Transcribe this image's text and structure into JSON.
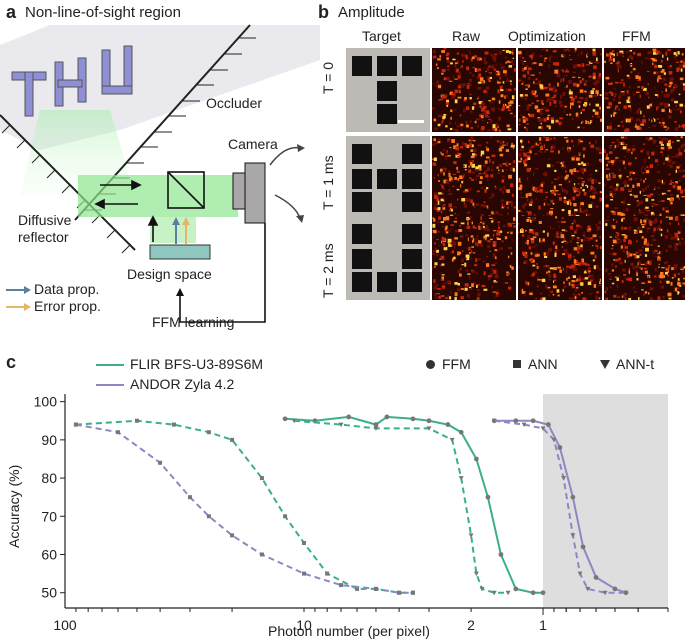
{
  "panel_a": {
    "letter": "a",
    "title": "Non-line-of-sight region",
    "occluder_label": "Occluder",
    "camera_label": "Camera",
    "reflector_label_1": "Diffusive",
    "reflector_label_2": "reflector",
    "design_space_label": "Design space",
    "data_prop_label": "Data prop.",
    "error_prop_label": "Error prop.",
    "ffm_learning_label": "FFM learning",
    "colors": {
      "data_prop": "#5a7fa0",
      "error_prop": "#e8b46a",
      "beam": "#7fe07f",
      "letters": "#8f8fd6",
      "design_space": "#8fc7bf"
    }
  },
  "panel_b": {
    "letter": "b",
    "title": "Amplitude",
    "columns": [
      "Target",
      "Raw",
      "Optimization",
      "FFM"
    ],
    "rows": [
      "T = 0",
      "T = 1 ms",
      "T = 2 ms"
    ]
  },
  "panel_c": {
    "letter": "c",
    "legend_cameras": [
      "FLIR BFS-U3-89S6M",
      "ANDOR Zyla 4.2"
    ],
    "legend_methods": [
      "FFM",
      "ANN",
      "ANN-t"
    ],
    "colors": {
      "flir": "#3aaf8a",
      "andor": "#8c88c4",
      "shade": "#dedede"
    }
  },
  "chart_data": {
    "type": "line",
    "xlabel": "Photon number (per pixel)",
    "ylabel": "Accuracy (%)",
    "x_scale": "log",
    "x_reversed": true,
    "xlim": [
      100,
      0.3
    ],
    "ylim": [
      46,
      102
    ],
    "x_ticks": [
      100,
      10,
      2,
      1
    ],
    "y_ticks": [
      50,
      60,
      70,
      80,
      90,
      100
    ],
    "shaded_region_x": [
      1,
      0.3
    ],
    "series": [
      {
        "name": "FLIR BFS-U3-89S6M",
        "method": "FFM",
        "style": "solid",
        "color": "#3aaf8a",
        "points": [
          [
            12,
            95.5
          ],
          [
            9,
            95
          ],
          [
            6.5,
            96
          ],
          [
            5,
            94
          ],
          [
            4.5,
            96
          ],
          [
            3.5,
            95.5
          ],
          [
            3,
            95
          ],
          [
            2.5,
            94
          ],
          [
            2.2,
            92
          ],
          [
            1.9,
            85
          ],
          [
            1.7,
            75
          ],
          [
            1.5,
            60
          ],
          [
            1.3,
            51
          ],
          [
            1.1,
            50
          ],
          [
            1,
            50
          ]
        ]
      },
      {
        "name": "FLIR BFS-U3-89S6M",
        "method": "ANN",
        "style": "dashed",
        "color": "#3aaf8a",
        "points": [
          [
            90,
            94
          ],
          [
            50,
            95
          ],
          [
            35,
            94
          ],
          [
            25,
            92
          ],
          [
            20,
            90
          ],
          [
            15,
            80
          ],
          [
            12,
            70
          ],
          [
            10,
            63
          ],
          [
            8,
            55
          ],
          [
            6,
            51
          ],
          [
            5,
            51
          ],
          [
            4,
            50
          ],
          [
            3.5,
            50
          ]
        ]
      },
      {
        "name": "FLIR BFS-U3-89S6M",
        "method": "ANN-t",
        "style": "dashed",
        "color": "#3aaf8a",
        "points": [
          [
            11,
            95
          ],
          [
            7,
            94
          ],
          [
            5,
            93
          ],
          [
            3,
            93
          ],
          [
            2.4,
            90
          ],
          [
            2.2,
            80
          ],
          [
            2,
            65
          ],
          [
            1.9,
            55
          ],
          [
            1.8,
            51
          ],
          [
            1.6,
            50
          ],
          [
            1.4,
            50
          ]
        ]
      },
      {
        "name": "ANDOR Zyla 4.2",
        "method": "FFM",
        "style": "solid",
        "color": "#8c88c4",
        "points": [
          [
            1.6,
            95
          ],
          [
            1.3,
            95
          ],
          [
            1.1,
            95
          ],
          [
            0.95,
            94
          ],
          [
            0.85,
            88
          ],
          [
            0.75,
            75
          ],
          [
            0.68,
            62
          ],
          [
            0.6,
            54
          ],
          [
            0.5,
            51
          ],
          [
            0.45,
            50
          ]
        ]
      },
      {
        "name": "ANDOR Zyla 4.2",
        "method": "ANN",
        "style": "dashed",
        "color": "#8c88c4",
        "points": [
          [
            90,
            94
          ],
          [
            60,
            92
          ],
          [
            40,
            84
          ],
          [
            30,
            75
          ],
          [
            25,
            70
          ],
          [
            20,
            65
          ],
          [
            15,
            60
          ],
          [
            10,
            55
          ],
          [
            7,
            52
          ],
          [
            5,
            51
          ],
          [
            4,
            50
          ],
          [
            3.5,
            50
          ]
        ]
      },
      {
        "name": "ANDOR Zyla 4.2",
        "method": "ANN-t",
        "style": "dashed",
        "color": "#8c88c4",
        "points": [
          [
            1.6,
            95
          ],
          [
            1.2,
            94
          ],
          [
            1,
            93
          ],
          [
            0.9,
            90
          ],
          [
            0.82,
            80
          ],
          [
            0.75,
            65
          ],
          [
            0.7,
            55
          ],
          [
            0.65,
            51
          ],
          [
            0.55,
            50
          ],
          [
            0.45,
            50
          ]
        ]
      }
    ]
  }
}
